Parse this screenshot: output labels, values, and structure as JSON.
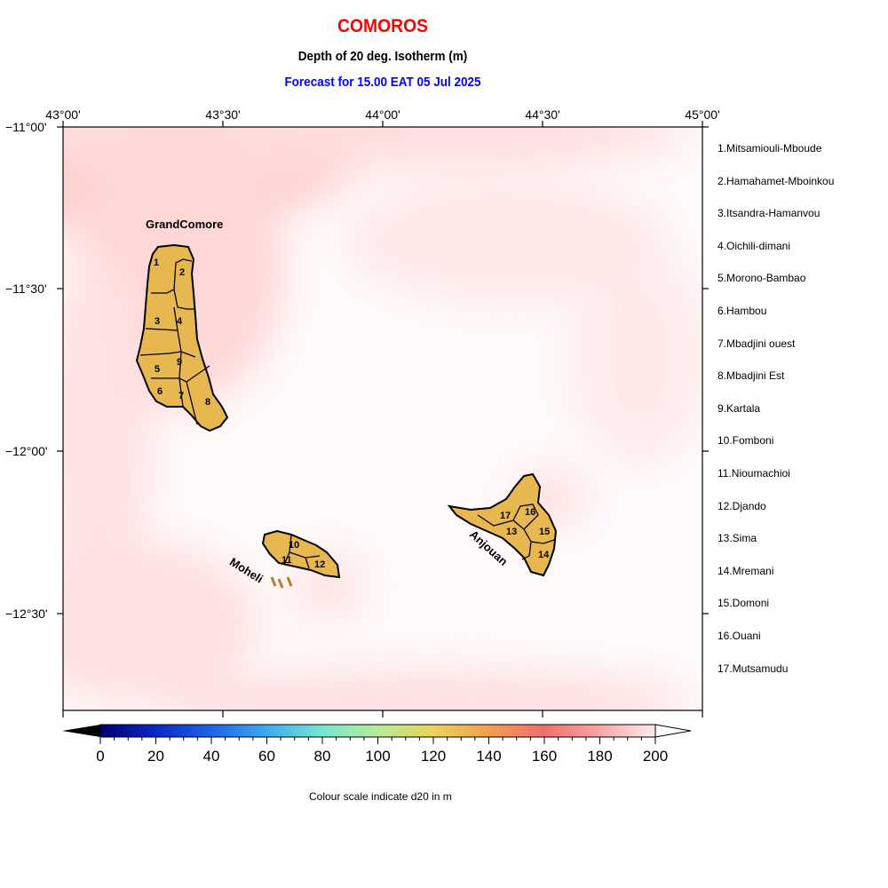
{
  "header": {
    "title": "COMOROS",
    "subtitle": "Depth of 20 deg. Isotherm (m)",
    "forecast": "Forecast for  15.00 EAT 05 Jul 2025"
  },
  "axes": {
    "lon_ticks": [
      "43°00'",
      "43°30'",
      "44°00'",
      "44°30'",
      "45°00'"
    ],
    "lat_ticks": [
      "−11°00'",
      "−11°30'",
      "−12°00'",
      "−12°30'"
    ]
  },
  "islands": {
    "grand_comore": "GrandComore",
    "moheli": "Moheli",
    "anjouan": "Anjouan"
  },
  "regions": [
    {
      "num": "1",
      "name": "1.Mitsamiouli-Mboude"
    },
    {
      "num": "2",
      "name": "2.Hamahamet-Mboinkou"
    },
    {
      "num": "3",
      "name": "3.Itsandra-Hamanvou"
    },
    {
      "num": "4",
      "name": "4.Oichili-dimani"
    },
    {
      "num": "5",
      "name": "5.Morono-Bambao"
    },
    {
      "num": "6",
      "name": "6.Hambou"
    },
    {
      "num": "7",
      "name": "7.Mbadjini ouest"
    },
    {
      "num": "8",
      "name": "8.Mbadjini Est"
    },
    {
      "num": "9",
      "name": "9.Kartala"
    },
    {
      "num": "10",
      "name": "10.Fomboni"
    },
    {
      "num": "11",
      "name": "11.Nioumachioi"
    },
    {
      "num": "12",
      "name": "12.Djando"
    },
    {
      "num": "13",
      "name": "13.Sima"
    },
    {
      "num": "14",
      "name": "14.Mremani"
    },
    {
      "num": "15",
      "name": "15.Domoni"
    },
    {
      "num": "16",
      "name": "16.Ouani"
    },
    {
      "num": "17",
      "name": "17.Mutsamudu"
    }
  ],
  "colorbar": {
    "labels": [
      "0",
      "20",
      "40",
      "60",
      "80",
      "100",
      "120",
      "140",
      "160",
      "180",
      "200"
    ],
    "caption": "Colour scale indicate d20 in m",
    "min": 0,
    "max": 200
  },
  "colors": {
    "land": "#e8b850",
    "title": "#ff0000",
    "forecast": "#0000ff",
    "sea_high": "#ffc8c8"
  }
}
